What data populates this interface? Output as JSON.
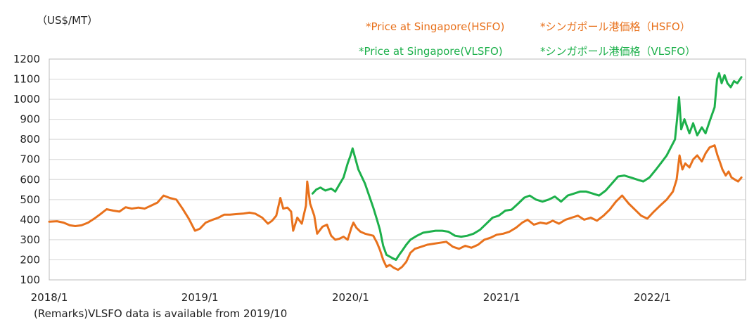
{
  "chart_data": {
    "type": "line",
    "unit_label": "（US$/MT）",
    "remark": "(Remarks)VLSFO data is available from 2019/10",
    "ylim": [
      100,
      1200
    ],
    "y_ticks": [
      "100",
      "200",
      "300",
      "400",
      "500",
      "600",
      "700",
      "800",
      "900",
      "1000",
      "1100",
      "1200"
    ],
    "x_ticks": [
      "2018/1",
      "2019/1",
      "2020/1",
      "2021/1",
      "2022/1"
    ],
    "grid": true,
    "legend_position": "top-right",
    "series": [
      {
        "name": "HSFO",
        "legend_en": "*Price at Singapore(HSFO)",
        "legend_ja": "*シンガポール港価格（HSFO）",
        "color": "#E8711C",
        "points": [
          [
            "2018-01-01",
            390
          ],
          [
            "2018-01-20",
            392
          ],
          [
            "2018-02-05",
            385
          ],
          [
            "2018-02-20",
            372
          ],
          [
            "2018-03-05",
            368
          ],
          [
            "2018-03-20",
            372
          ],
          [
            "2018-04-05",
            385
          ],
          [
            "2018-04-20",
            405
          ],
          [
            "2018-05-05",
            428
          ],
          [
            "2018-05-20",
            452
          ],
          [
            "2018-06-05",
            445
          ],
          [
            "2018-06-20",
            440
          ],
          [
            "2018-07-05",
            462
          ],
          [
            "2018-07-20",
            455
          ],
          [
            "2018-08-05",
            460
          ],
          [
            "2018-08-20",
            455
          ],
          [
            "2018-09-05",
            470
          ],
          [
            "2018-09-20",
            485
          ],
          [
            "2018-10-05",
            520
          ],
          [
            "2018-10-20",
            508
          ],
          [
            "2018-11-05",
            500
          ],
          [
            "2018-11-20",
            455
          ],
          [
            "2018-12-05",
            405
          ],
          [
            "2018-12-20",
            345
          ],
          [
            "2019-01-01",
            355
          ],
          [
            "2019-01-15",
            385
          ],
          [
            "2019-02-01",
            400
          ],
          [
            "2019-02-15",
            410
          ],
          [
            "2019-03-01",
            425
          ],
          [
            "2019-03-15",
            425
          ],
          [
            "2019-04-01",
            428
          ],
          [
            "2019-04-15",
            430
          ],
          [
            "2019-05-01",
            435
          ],
          [
            "2019-05-15",
            430
          ],
          [
            "2019-06-01",
            410
          ],
          [
            "2019-06-15",
            380
          ],
          [
            "2019-06-25",
            395
          ],
          [
            "2019-07-05",
            420
          ],
          [
            "2019-07-15",
            508
          ],
          [
            "2019-07-22",
            455
          ],
          [
            "2019-08-01",
            460
          ],
          [
            "2019-08-10",
            440
          ],
          [
            "2019-08-15",
            345
          ],
          [
            "2019-08-25",
            410
          ],
          [
            "2019-09-05",
            380
          ],
          [
            "2019-09-15",
            470
          ],
          [
            "2019-09-18",
            590
          ],
          [
            "2019-09-25",
            480
          ],
          [
            "2019-10-05",
            420
          ],
          [
            "2019-10-12",
            330
          ],
          [
            "2019-10-25",
            365
          ],
          [
            "2019-11-05",
            375
          ],
          [
            "2019-11-15",
            320
          ],
          [
            "2019-11-25",
            300
          ],
          [
            "2019-12-05",
            305
          ],
          [
            "2019-12-15",
            315
          ],
          [
            "2019-12-25",
            300
          ],
          [
            "2020-01-03",
            360
          ],
          [
            "2020-01-08",
            385
          ],
          [
            "2020-01-15",
            360
          ],
          [
            "2020-01-25",
            340
          ],
          [
            "2020-02-05",
            330
          ],
          [
            "2020-02-15",
            325
          ],
          [
            "2020-02-25",
            320
          ],
          [
            "2020-03-05",
            285
          ],
          [
            "2020-03-12",
            250
          ],
          [
            "2020-03-20",
            200
          ],
          [
            "2020-03-28",
            165
          ],
          [
            "2020-04-05",
            175
          ],
          [
            "2020-04-15",
            160
          ],
          [
            "2020-04-25",
            150
          ],
          [
            "2020-05-05",
            165
          ],
          [
            "2020-05-15",
            190
          ],
          [
            "2020-05-25",
            235
          ],
          [
            "2020-06-05",
            255
          ],
          [
            "2020-06-20",
            265
          ],
          [
            "2020-07-05",
            275
          ],
          [
            "2020-07-20",
            280
          ],
          [
            "2020-08-05",
            285
          ],
          [
            "2020-08-20",
            290
          ],
          [
            "2020-09-05",
            265
          ],
          [
            "2020-09-20",
            255
          ],
          [
            "2020-10-05",
            270
          ],
          [
            "2020-10-20",
            260
          ],
          [
            "2020-11-05",
            275
          ],
          [
            "2020-11-20",
            300
          ],
          [
            "2020-12-05",
            310
          ],
          [
            "2020-12-20",
            325
          ],
          [
            "2021-01-05",
            330
          ],
          [
            "2021-01-20",
            340
          ],
          [
            "2021-02-05",
            360
          ],
          [
            "2021-02-20",
            385
          ],
          [
            "2021-03-05",
            400
          ],
          [
            "2021-03-20",
            375
          ],
          [
            "2021-04-05",
            385
          ],
          [
            "2021-04-20",
            380
          ],
          [
            "2021-05-05",
            395
          ],
          [
            "2021-05-20",
            380
          ],
          [
            "2021-06-05",
            400
          ],
          [
            "2021-06-20",
            410
          ],
          [
            "2021-07-05",
            420
          ],
          [
            "2021-07-20",
            400
          ],
          [
            "2021-08-05",
            410
          ],
          [
            "2021-08-20",
            395
          ],
          [
            "2021-09-05",
            420
          ],
          [
            "2021-09-20",
            450
          ],
          [
            "2021-10-05",
            490
          ],
          [
            "2021-10-20",
            520
          ],
          [
            "2021-11-05",
            480
          ],
          [
            "2021-11-20",
            450
          ],
          [
            "2021-12-05",
            420
          ],
          [
            "2021-12-20",
            405
          ],
          [
            "2022-01-05",
            440
          ],
          [
            "2022-01-20",
            470
          ],
          [
            "2022-02-05",
            500
          ],
          [
            "2022-02-20",
            540
          ],
          [
            "2022-03-01",
            600
          ],
          [
            "2022-03-08",
            720
          ],
          [
            "2022-03-15",
            650
          ],
          [
            "2022-03-22",
            680
          ],
          [
            "2022-04-01",
            660
          ],
          [
            "2022-04-10",
            700
          ],
          [
            "2022-04-20",
            720
          ],
          [
            "2022-05-01",
            690
          ],
          [
            "2022-05-10",
            730
          ],
          [
            "2022-05-20",
            760
          ],
          [
            "2022-06-01",
            770
          ],
          [
            "2022-06-08",
            720
          ],
          [
            "2022-06-15",
            680
          ],
          [
            "2022-06-20",
            650
          ],
          [
            "2022-06-28",
            620
          ],
          [
            "2022-07-05",
            640
          ],
          [
            "2022-07-12",
            610
          ],
          [
            "2022-07-20",
            600
          ],
          [
            "2022-07-28",
            590
          ],
          [
            "2022-08-05",
            610
          ]
        ]
      },
      {
        "name": "VLSFO",
        "legend_en": "*Price at Singapore(VLSFO)",
        "legend_ja": "*シンガポール港価格（VLSFO）",
        "color": "#1DB04B",
        "points": [
          [
            "2019-10-01",
            530
          ],
          [
            "2019-10-10",
            550
          ],
          [
            "2019-10-20",
            560
          ],
          [
            "2019-11-01",
            545
          ],
          [
            "2019-11-15",
            555
          ],
          [
            "2019-11-25",
            540
          ],
          [
            "2019-12-05",
            575
          ],
          [
            "2019-12-15",
            610
          ],
          [
            "2019-12-25",
            680
          ],
          [
            "2020-01-01",
            720
          ],
          [
            "2020-01-06",
            755
          ],
          [
            "2020-01-12",
            710
          ],
          [
            "2020-01-20",
            650
          ],
          [
            "2020-01-28",
            615
          ],
          [
            "2020-02-05",
            580
          ],
          [
            "2020-02-15",
            520
          ],
          [
            "2020-02-25",
            460
          ],
          [
            "2020-03-05",
            400
          ],
          [
            "2020-03-12",
            350
          ],
          [
            "2020-03-20",
            270
          ],
          [
            "2020-03-28",
            225
          ],
          [
            "2020-04-10",
            210
          ],
          [
            "2020-04-20",
            200
          ],
          [
            "2020-04-28",
            225
          ],
          [
            "2020-05-05",
            245
          ],
          [
            "2020-05-15",
            275
          ],
          [
            "2020-05-25",
            300
          ],
          [
            "2020-06-10",
            320
          ],
          [
            "2020-06-25",
            335
          ],
          [
            "2020-07-10",
            340
          ],
          [
            "2020-07-25",
            345
          ],
          [
            "2020-08-10",
            345
          ],
          [
            "2020-08-25",
            340
          ],
          [
            "2020-09-10",
            320
          ],
          [
            "2020-09-25",
            315
          ],
          [
            "2020-10-10",
            320
          ],
          [
            "2020-10-25",
            330
          ],
          [
            "2020-11-10",
            350
          ],
          [
            "2020-11-25",
            380
          ],
          [
            "2020-12-10",
            410
          ],
          [
            "2020-12-25",
            420
          ],
          [
            "2021-01-10",
            445
          ],
          [
            "2021-01-25",
            450
          ],
          [
            "2021-02-10",
            480
          ],
          [
            "2021-02-25",
            510
          ],
          [
            "2021-03-10",
            520
          ],
          [
            "2021-03-25",
            500
          ],
          [
            "2021-04-10",
            490
          ],
          [
            "2021-04-25",
            500
          ],
          [
            "2021-05-10",
            515
          ],
          [
            "2021-05-25",
            490
          ],
          [
            "2021-06-10",
            520
          ],
          [
            "2021-06-25",
            530
          ],
          [
            "2021-07-10",
            540
          ],
          [
            "2021-07-25",
            540
          ],
          [
            "2021-08-10",
            530
          ],
          [
            "2021-08-25",
            520
          ],
          [
            "2021-09-10",
            545
          ],
          [
            "2021-09-25",
            580
          ],
          [
            "2021-10-10",
            615
          ],
          [
            "2021-10-25",
            620
          ],
          [
            "2021-11-10",
            610
          ],
          [
            "2021-11-25",
            600
          ],
          [
            "2021-12-10",
            590
          ],
          [
            "2021-12-25",
            610
          ],
          [
            "2022-01-10",
            650
          ],
          [
            "2022-01-25",
            690
          ],
          [
            "2022-02-05",
            720
          ],
          [
            "2022-02-15",
            760
          ],
          [
            "2022-02-25",
            800
          ],
          [
            "2022-03-02",
            900
          ],
          [
            "2022-03-07",
            1010
          ],
          [
            "2022-03-12",
            850
          ],
          [
            "2022-03-20",
            900
          ],
          [
            "2022-04-01",
            830
          ],
          [
            "2022-04-10",
            880
          ],
          [
            "2022-04-20",
            820
          ],
          [
            "2022-05-01",
            860
          ],
          [
            "2022-05-10",
            830
          ],
          [
            "2022-05-20",
            890
          ],
          [
            "2022-06-01",
            960
          ],
          [
            "2022-06-07",
            1100
          ],
          [
            "2022-06-12",
            1130
          ],
          [
            "2022-06-18",
            1080
          ],
          [
            "2022-06-25",
            1120
          ],
          [
            "2022-07-02",
            1080
          ],
          [
            "2022-07-10",
            1060
          ],
          [
            "2022-07-18",
            1090
          ],
          [
            "2022-07-26",
            1080
          ],
          [
            "2022-08-05",
            1110
          ]
        ]
      }
    ]
  }
}
